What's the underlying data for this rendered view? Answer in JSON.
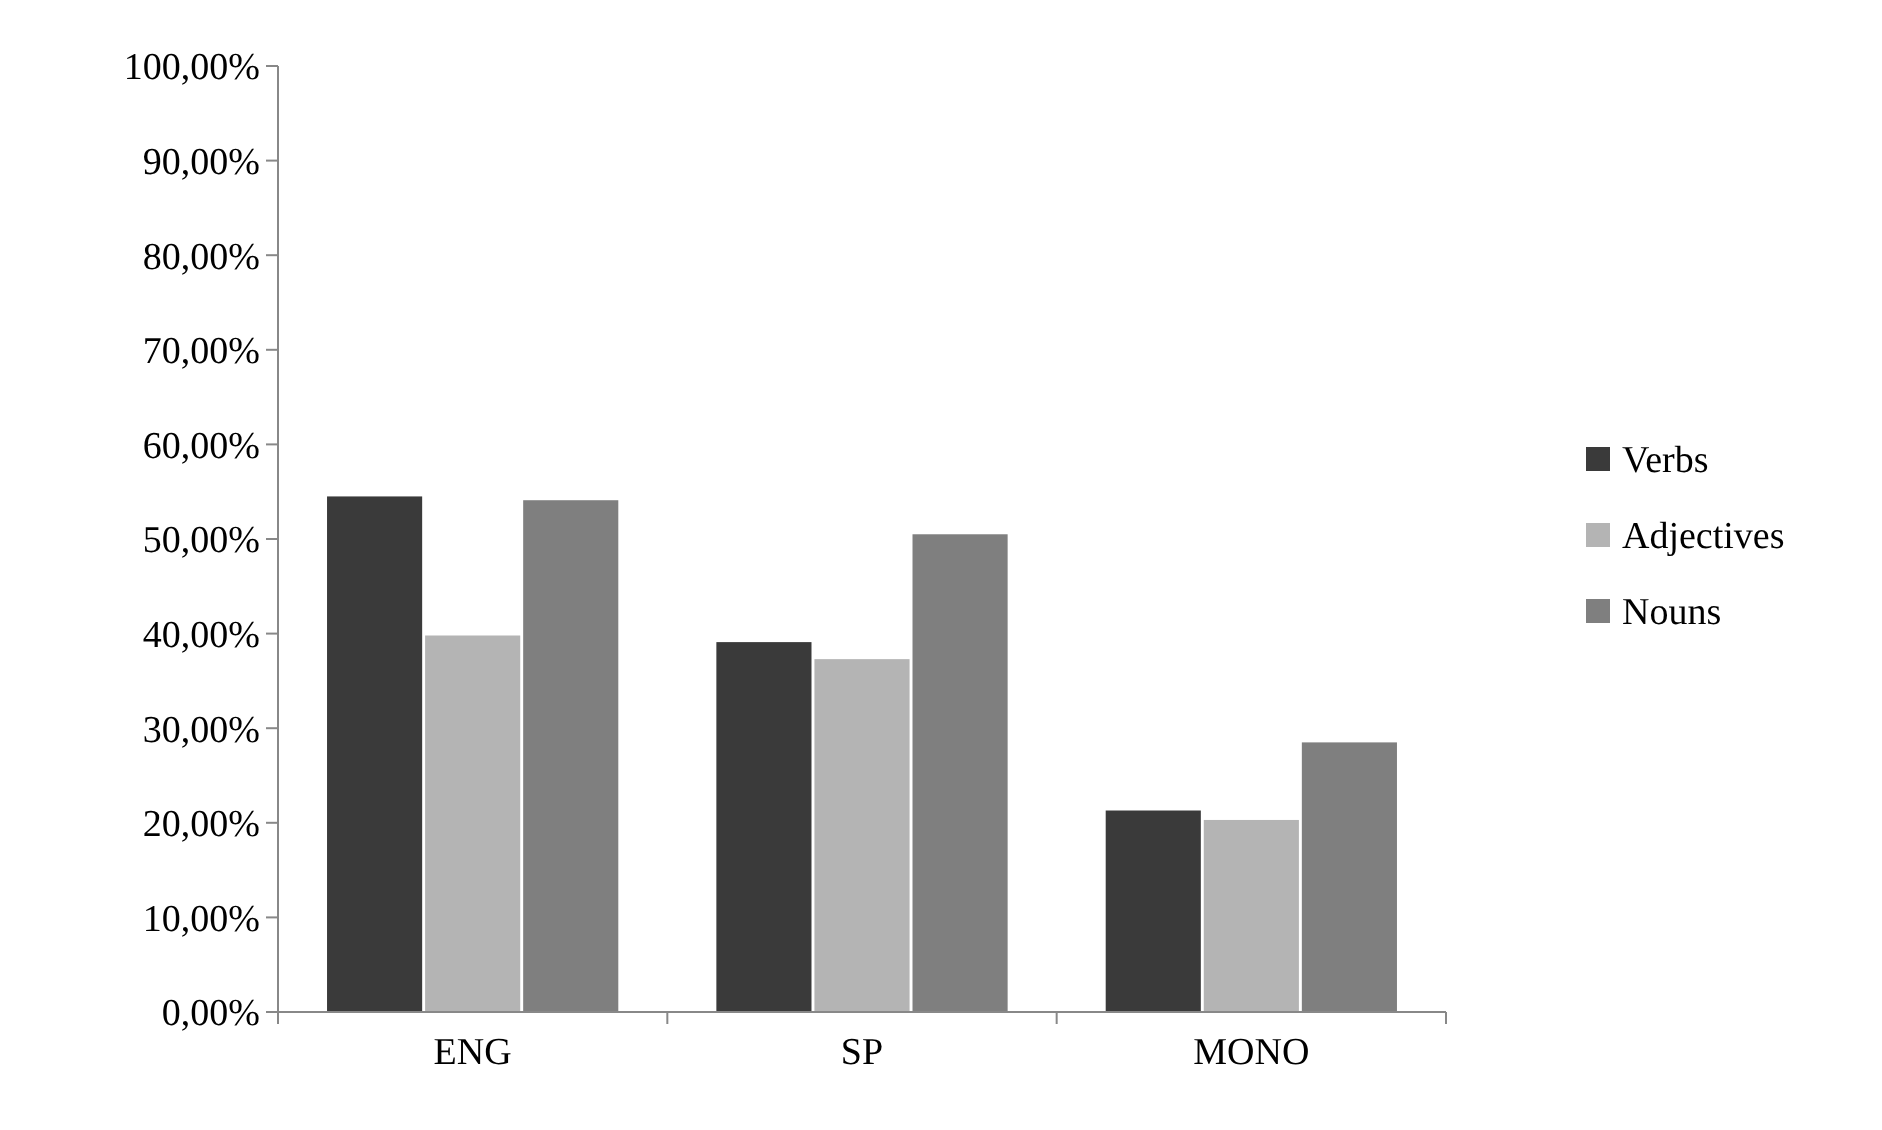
{
  "chart_data": {
    "type": "bar",
    "categories": [
      "ENG",
      "SP",
      "MONO"
    ],
    "series": [
      {
        "name": "Verbs",
        "color": "#3a3a3a",
        "values": [
          54.5,
          39.1,
          21.3
        ]
      },
      {
        "name": "Adjectives",
        "color": "#b4b4b4",
        "values": [
          39.8,
          37.3,
          20.3
        ]
      },
      {
        "name": "Nouns",
        "color": "#7f7f7f",
        "values": [
          54.1,
          50.5,
          28.5
        ]
      }
    ],
    "ylim": [
      0,
      100
    ],
    "yticks": [
      {
        "value": 0,
        "label": "0,00%"
      },
      {
        "value": 10,
        "label": "10,00%"
      },
      {
        "value": 20,
        "label": "20,00%"
      },
      {
        "value": 30,
        "label": "30,00%"
      },
      {
        "value": 40,
        "label": "40,00%"
      },
      {
        "value": 50,
        "label": "50,00%"
      },
      {
        "value": 60,
        "label": "60,00%"
      },
      {
        "value": 70,
        "label": "70,00%"
      },
      {
        "value": 80,
        "label": "80,00%"
      },
      {
        "value": 90,
        "label": "90,00%"
      },
      {
        "value": 100,
        "label": "100,00%"
      }
    ],
    "legend": "right",
    "grid": false
  }
}
